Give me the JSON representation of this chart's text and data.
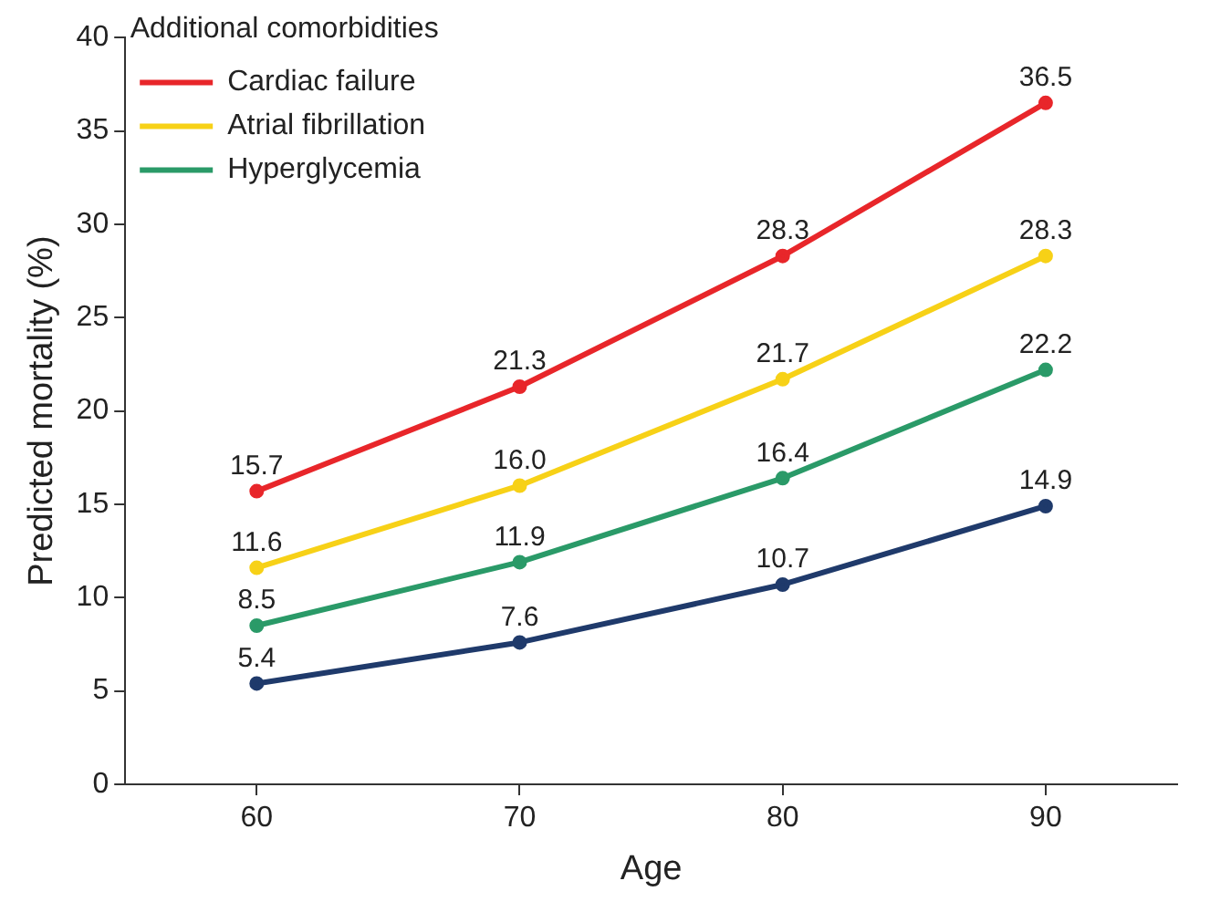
{
  "chart_data": {
    "type": "line",
    "xlabel": "Age",
    "ylabel": "Predicted mortality (%)",
    "legend_title": "Additional comorbidities",
    "x": [
      60,
      70,
      80,
      90
    ],
    "xlim": [
      55,
      95
    ],
    "xticks": [
      60,
      70,
      80,
      90
    ],
    "ylim": [
      0,
      40
    ],
    "yticks": [
      0,
      5,
      10,
      15,
      20,
      25,
      30,
      35,
      40
    ],
    "grid": false,
    "legend": "top left",
    "marker": "circle",
    "line_style": "solid",
    "series": [
      {
        "name": "Cardiac failure",
        "color": "#e8262a",
        "values": [
          15.7,
          21.3,
          28.3,
          36.5
        ],
        "value_labels": [
          "15.7",
          "21.3",
          "28.3",
          "36.5"
        ]
      },
      {
        "name": "Atrial fibrillation",
        "color": "#f7d117",
        "values": [
          11.6,
          16.0,
          21.7,
          28.3
        ],
        "value_labels": [
          "11.6",
          "16.0",
          "21.7",
          "28.3"
        ]
      },
      {
        "name": "Hyperglycemia",
        "color": "#2a9a68",
        "values": [
          8.5,
          11.9,
          16.4,
          22.2
        ],
        "value_labels": [
          "8.5",
          "11.9",
          "16.4",
          "22.2"
        ]
      },
      {
        "color": "#1f3a6b",
        "values": [
          5.4,
          7.6,
          10.7,
          14.9
        ],
        "value_labels": [
          "5.4",
          "7.6",
          "10.7",
          "14.9"
        ]
      }
    ]
  }
}
